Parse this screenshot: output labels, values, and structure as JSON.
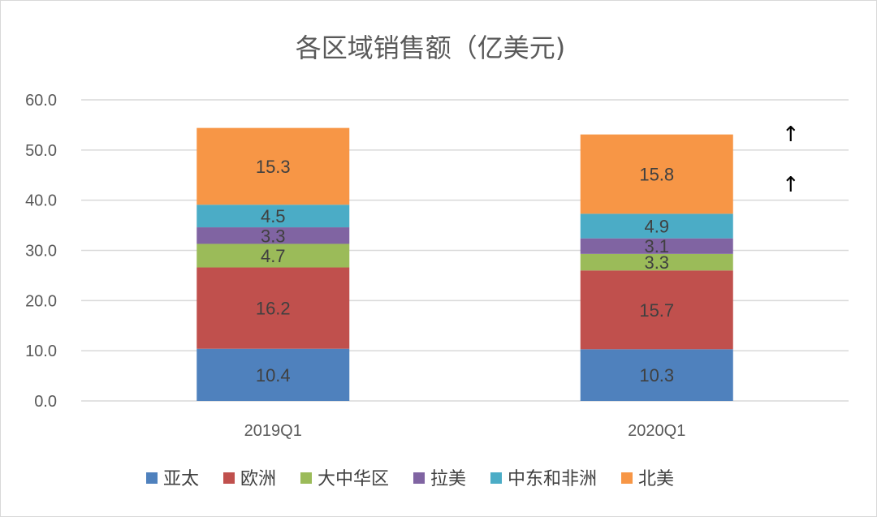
{
  "chart_data": {
    "type": "bar",
    "stacked": true,
    "title": "各区域销售额（亿美元)",
    "categories": [
      "2019Q1",
      "2020Q1"
    ],
    "series": [
      {
        "name": "亚太",
        "color": "#4f81bd",
        "values": [
          10.4,
          10.3
        ]
      },
      {
        "name": "欧洲",
        "color": "#c0504d",
        "values": [
          16.2,
          15.7
        ]
      },
      {
        "name": "大中华区",
        "color": "#9bbb59",
        "values": [
          4.7,
          3.3
        ]
      },
      {
        "name": "拉美",
        "color": "#8064a2",
        "values": [
          3.3,
          3.1
        ]
      },
      {
        "name": "中东和非洲",
        "color": "#4bacc6",
        "values": [
          4.5,
          4.9
        ]
      },
      {
        "name": "北美",
        "color": "#f79646",
        "values": [
          15.3,
          15.8
        ]
      }
    ],
    "yticks": [
      "0.0",
      "10.0",
      "20.0",
      "30.0",
      "40.0",
      "50.0",
      "60.0"
    ],
    "ylim": [
      0,
      60
    ],
    "grid": true,
    "legend": "bottom",
    "annotations": [
      {
        "text": "↑",
        "category": "2020Q1",
        "y": 53.2
      },
      {
        "text": "↑",
        "category": "2020Q1",
        "y": 43.2
      }
    ]
  }
}
